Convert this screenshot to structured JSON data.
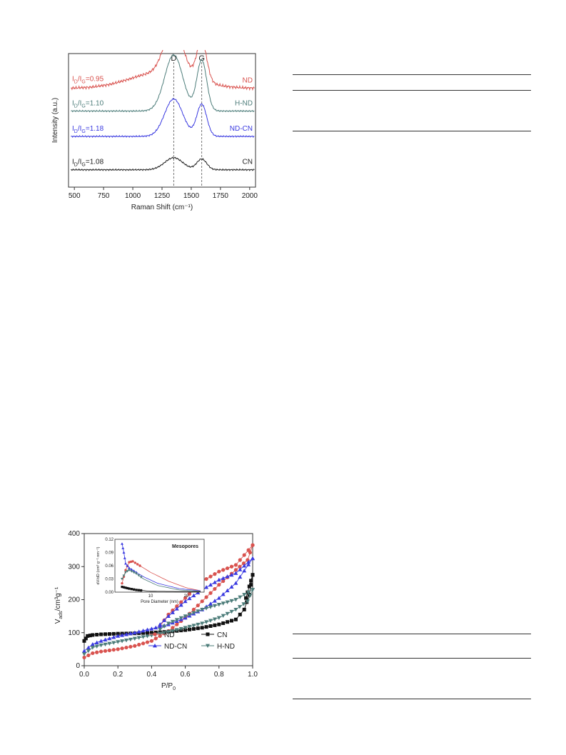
{
  "raman": {
    "chart_data": {
      "type": "line",
      "xlabel": "Raman Shift (cm⁻¹)",
      "ylabel": "Intensity (a.u.)",
      "xlim": [
        450,
        2050
      ],
      "xticks": [
        500,
        750,
        1000,
        1250,
        1500,
        1750,
        2000
      ],
      "peak_labels": [
        {
          "label": "D",
          "x": 1350
        },
        {
          "label": "G",
          "x": 1590
        }
      ],
      "series": [
        {
          "name": "ND",
          "color": "#d9534f",
          "ratio_main": "I",
          "ratio_sub1": "D",
          "ratio_mid": "/I",
          "ratio_sub2": "G",
          "ratio_val": "=0.95",
          "baseline": 0.26,
          "dAmp": 0.36,
          "gAmp": 0.3,
          "bump": 0.12
        },
        {
          "name": "H-ND",
          "color": "#4d7d7a",
          "ratio_main": "I",
          "ratio_sub1": "D",
          "ratio_mid": "/I",
          "ratio_sub2": "G",
          "ratio_val": "=1.10",
          "baseline": 0.43,
          "dAmp": 0.42,
          "gAmp": 0.38,
          "bump": 0.0
        },
        {
          "name": "ND-CN",
          "color": "#3a3ae0",
          "ratio_main": "I",
          "ratio_sub1": "D",
          "ratio_mid": "/I",
          "ratio_sub2": "G",
          "ratio_val": "=1.18",
          "baseline": 0.62,
          "dAmp": 0.28,
          "gAmp": 0.24,
          "bump": 0.0
        },
        {
          "name": "CN",
          "color": "#222222",
          "ratio_main": "I",
          "ratio_sub1": "D",
          "ratio_mid": "/I",
          "ratio_sub2": "G",
          "ratio_val": "=1.08",
          "baseline": 0.87,
          "dAmp": 0.09,
          "gAmp": 0.08,
          "bump": 0.0
        }
      ]
    }
  },
  "bet": {
    "chart_data": {
      "type": "line",
      "xlabel": "P/P",
      "xlabel_sub": "0",
      "ylabel_main": "V",
      "ylabel_sub": "ads",
      "ylabel_rest": "/cm³g⁻¹",
      "xlim": [
        0.0,
        1.0
      ],
      "ylim": [
        0,
        400
      ],
      "xticks": [
        0.0,
        0.2,
        0.4,
        0.6,
        0.8,
        1.0
      ],
      "yticks": [
        0,
        100,
        200,
        300,
        400
      ],
      "legend": [
        {
          "name": "ND",
          "color": "#d9534f",
          "marker": "circle"
        },
        {
          "name": "CN",
          "color": "#111111",
          "marker": "square"
        },
        {
          "name": "ND-CN",
          "color": "#3a3ae0",
          "marker": "triangle"
        },
        {
          "name": "H-ND",
          "color": "#4d7d7a",
          "marker": "triangle-down"
        }
      ],
      "series": [
        {
          "name": "ND",
          "adsorption": [
            [
              0.0,
              25
            ],
            [
              0.05,
              38
            ],
            [
              0.1,
              43
            ],
            [
              0.2,
              50
            ],
            [
              0.3,
              60
            ],
            [
              0.4,
              75
            ],
            [
              0.5,
              105
            ],
            [
              0.6,
              145
            ],
            [
              0.7,
              195
            ],
            [
              0.8,
              245
            ],
            [
              0.9,
              290
            ],
            [
              0.97,
              320
            ],
            [
              1.0,
              365
            ]
          ],
          "desorption": [
            [
              1.0,
              365
            ],
            [
              0.9,
              305
            ],
            [
              0.8,
              285
            ],
            [
              0.7,
              255
            ],
            [
              0.6,
              205
            ],
            [
              0.5,
              155
            ],
            [
              0.45,
              120
            ]
          ]
        },
        {
          "name": "CN",
          "adsorption": [
            [
              0.0,
              75
            ],
            [
              0.02,
              90
            ],
            [
              0.05,
              93
            ],
            [
              0.1,
              95
            ],
            [
              0.2,
              97
            ],
            [
              0.3,
              98
            ],
            [
              0.4,
              100
            ],
            [
              0.5,
              103
            ],
            [
              0.6,
              108
            ],
            [
              0.7,
              115
            ],
            [
              0.8,
              125
            ],
            [
              0.9,
              140
            ],
            [
              0.95,
              170
            ],
            [
              0.98,
              215
            ],
            [
              1.0,
              275
            ]
          ],
          "desorption": [
            [
              1.0,
              275
            ],
            [
              0.98,
              240
            ],
            [
              0.96,
              205
            ]
          ]
        },
        {
          "name": "ND-CN",
          "adsorption": [
            [
              0.0,
              45
            ],
            [
              0.05,
              65
            ],
            [
              0.1,
              75
            ],
            [
              0.2,
              90
            ],
            [
              0.3,
              100
            ],
            [
              0.4,
              112
            ],
            [
              0.5,
              125
            ],
            [
              0.6,
              145
            ],
            [
              0.7,
              170
            ],
            [
              0.8,
              205
            ],
            [
              0.9,
              250
            ],
            [
              1.0,
              325
            ]
          ],
          "desorption": [
            [
              1.0,
              325
            ],
            [
              0.9,
              280
            ],
            [
              0.8,
              260
            ],
            [
              0.7,
              230
            ],
            [
              0.6,
              195
            ],
            [
              0.5,
              150
            ],
            [
              0.45,
              125
            ]
          ]
        },
        {
          "name": "H-ND",
          "adsorption": [
            [
              0.0,
              35
            ],
            [
              0.05,
              55
            ],
            [
              0.1,
              62
            ],
            [
              0.2,
              72
            ],
            [
              0.3,
              82
            ],
            [
              0.4,
              92
            ],
            [
              0.5,
              102
            ],
            [
              0.6,
              115
            ],
            [
              0.7,
              128
            ],
            [
              0.8,
              145
            ],
            [
              0.9,
              170
            ],
            [
              0.97,
              195
            ],
            [
              1.0,
              230
            ]
          ],
          "desorption": [
            [
              1.0,
              230
            ],
            [
              0.9,
              200
            ],
            [
              0.8,
              185
            ],
            [
              0.7,
              170
            ],
            [
              0.6,
              150
            ],
            [
              0.5,
              128
            ],
            [
              0.45,
              110
            ]
          ]
        }
      ]
    },
    "inset": {
      "chart_data": {
        "type": "line",
        "title": "Mesopores",
        "xlabel": "Pore Diameter (nm)",
        "ylabel": "dV/dD (cm³ g⁻¹ nm⁻¹)",
        "xlim": [
          0,
          25
        ],
        "ylim": [
          0,
          0.12
        ],
        "xticks": [
          10,
          20
        ],
        "yticks": [
          "0.00",
          "0.03",
          "0.06",
          "0.09",
          "0.12"
        ],
        "series": [
          {
            "name": "ND",
            "points": [
              [
                2,
                0.02
              ],
              [
                3,
                0.05
              ],
              [
                4,
                0.068
              ],
              [
                5,
                0.07
              ],
              [
                7,
                0.06
              ],
              [
                10,
                0.045
              ],
              [
                15,
                0.025
              ],
              [
                20,
                0.01
              ],
              [
                24,
                0.003
              ]
            ]
          },
          {
            "name": "ND-CN",
            "points": [
              [
                2,
                0.11
              ],
              [
                2.5,
                0.09
              ],
              [
                3,
                0.065
              ],
              [
                4,
                0.055
              ],
              [
                6,
                0.045
              ],
              [
                8,
                0.035
              ],
              [
                12,
                0.02
              ],
              [
                18,
                0.008
              ],
              [
                24,
                0.003
              ]
            ]
          },
          {
            "name": "H-ND",
            "points": [
              [
                2,
                0.03
              ],
              [
                3,
                0.045
              ],
              [
                4,
                0.05
              ],
              [
                6,
                0.042
              ],
              [
                8,
                0.03
              ],
              [
                12,
                0.015
              ],
              [
                18,
                0.005
              ],
              [
                24,
                0.002
              ]
            ]
          },
          {
            "name": "CN",
            "points": [
              [
                2,
                0.012
              ],
              [
                3,
                0.01
              ],
              [
                4,
                0.008
              ],
              [
                6,
                0.005
              ],
              [
                10,
                0.002
              ],
              [
                24,
                0.001
              ]
            ]
          }
        ]
      }
    }
  }
}
